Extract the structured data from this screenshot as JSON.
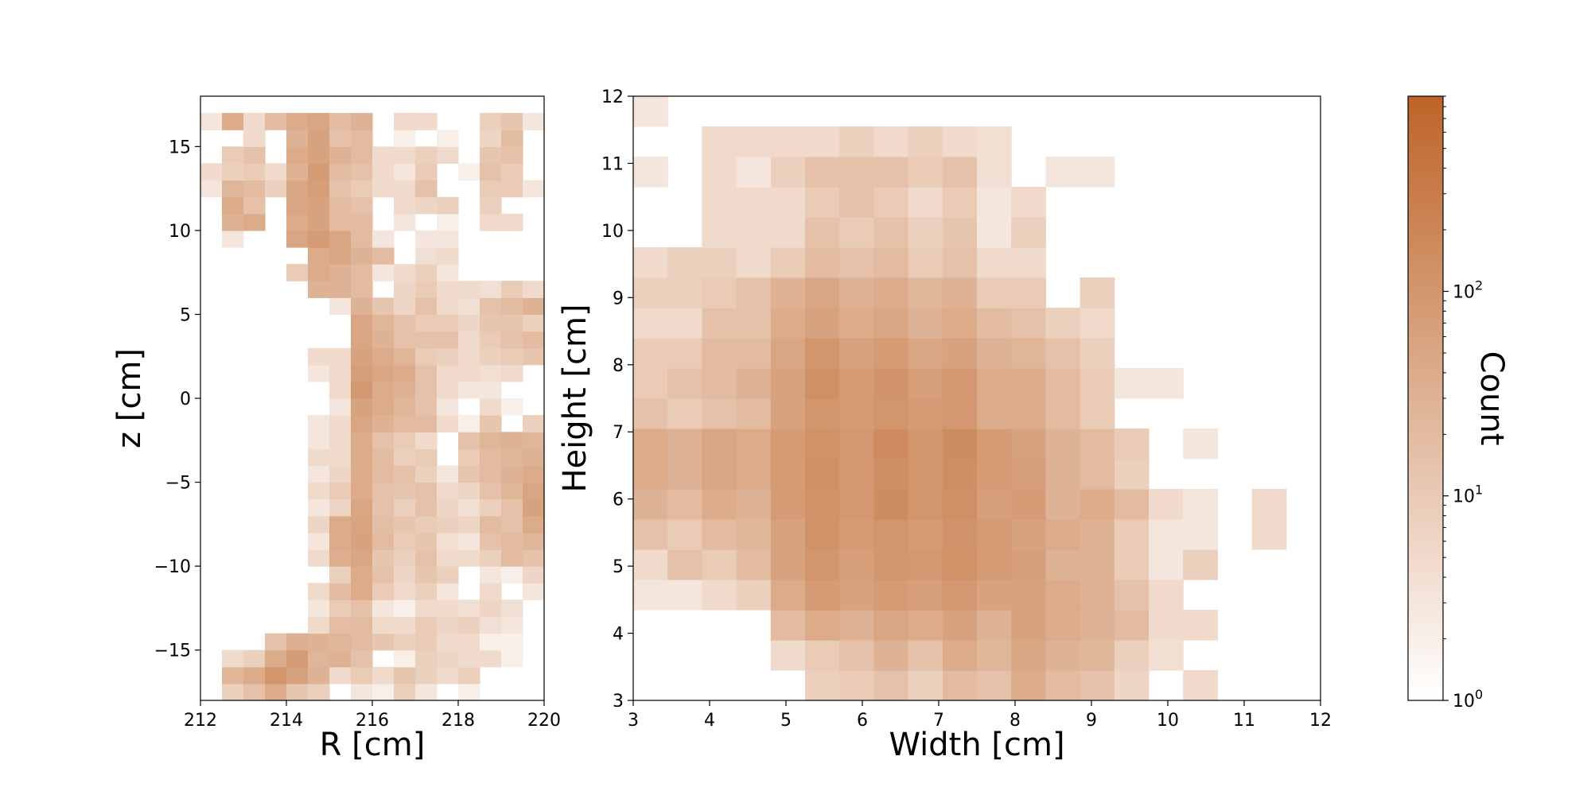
{
  "chart_data": [
    {
      "type": "heatmap",
      "title": "",
      "xlabel": "R [cm]",
      "ylabel": "z [cm]",
      "xlim": [
        212,
        220
      ],
      "ylim": [
        -18,
        18
      ],
      "xticks": [
        212,
        214,
        216,
        218,
        220
      ],
      "xtick_labels": [
        "212",
        "214",
        "216",
        "218",
        "220"
      ],
      "yticks": [
        -15,
        -10,
        -5,
        0,
        5,
        10,
        15
      ],
      "ytick_labels": [
        "−15",
        "−10",
        "−5",
        "0",
        "5",
        "10",
        "15"
      ],
      "color_scale": "log",
      "x_edges": [
        212,
        212.5,
        213,
        213.5,
        214,
        214.5,
        215,
        215.5,
        216,
        216.5,
        217,
        217.5,
        218,
        218.5,
        219,
        219.5,
        220
      ],
      "y_edges": [
        -18,
        -17,
        -16,
        -15,
        -14,
        -13,
        -12,
        -11,
        -10,
        -9,
        -8,
        -7,
        -6,
        -5,
        -4,
        -3,
        -2,
        -1,
        0,
        1,
        2,
        3,
        4,
        5,
        6,
        7,
        8,
        9,
        10,
        11,
        12,
        13,
        14,
        15,
        16,
        17,
        18
      ],
      "counts": [
        [
          0,
          8,
          15,
          40,
          12,
          8,
          0,
          3,
          2,
          8,
          3,
          0,
          2,
          0,
          0,
          0
        ],
        [
          0,
          25,
          40,
          100,
          60,
          30,
          5,
          10,
          5,
          12,
          8,
          5,
          8,
          0,
          0,
          0
        ],
        [
          0,
          5,
          8,
          40,
          80,
          25,
          30,
          15,
          0,
          2,
          8,
          6,
          5,
          5,
          2,
          0
        ],
        [
          0,
          0,
          0,
          15,
          35,
          30,
          25,
          20,
          12,
          8,
          10,
          5,
          5,
          2,
          2,
          0
        ],
        [
          0,
          0,
          0,
          0,
          0,
          5,
          18,
          20,
          5,
          5,
          10,
          6,
          8,
          4,
          3,
          0
        ],
        [
          0,
          0,
          0,
          0,
          0,
          3,
          10,
          15,
          3,
          2,
          5,
          5,
          4,
          6,
          4,
          0
        ],
        [
          0,
          0,
          0,
          0,
          0,
          5,
          20,
          40,
          10,
          5,
          8,
          3,
          0,
          5,
          0,
          3
        ],
        [
          0,
          0,
          0,
          0,
          0,
          0,
          8,
          40,
          15,
          6,
          12,
          8,
          0,
          3,
          2,
          6
        ],
        [
          0,
          0,
          0,
          0,
          0,
          5,
          35,
          50,
          12,
          8,
          15,
          5,
          5,
          8,
          20,
          15
        ],
        [
          0,
          0,
          0,
          0,
          0,
          3,
          40,
          60,
          20,
          10,
          12,
          4,
          3,
          15,
          20,
          25
        ],
        [
          0,
          0,
          0,
          0,
          0,
          6,
          40,
          55,
          18,
          12,
          10,
          8,
          6,
          20,
          15,
          40
        ],
        [
          0,
          0,
          0,
          0,
          0,
          3,
          6,
          50,
          15,
          8,
          15,
          6,
          4,
          8,
          15,
          60
        ],
        [
          0,
          0,
          0,
          0,
          0,
          5,
          10,
          40,
          15,
          12,
          15,
          5,
          6,
          15,
          25,
          50
        ],
        [
          0,
          0,
          0,
          0,
          0,
          3,
          6,
          40,
          20,
          15,
          8,
          3,
          12,
          20,
          30,
          40
        ],
        [
          0,
          0,
          0,
          0,
          0,
          5,
          5,
          40,
          20,
          8,
          10,
          0,
          10,
          20,
          25,
          30
        ],
        [
          0,
          0,
          0,
          0,
          0,
          3,
          5,
          40,
          15,
          10,
          5,
          0,
          15,
          25,
          30,
          25
        ],
        [
          0,
          0,
          0,
          0,
          0,
          3,
          5,
          50,
          30,
          20,
          20,
          5,
          2,
          12,
          0,
          8
        ],
        [
          0,
          0,
          0,
          0,
          0,
          0,
          3,
          60,
          40,
          25,
          15,
          3,
          0,
          5,
          2,
          0
        ],
        [
          0,
          0,
          0,
          0,
          0,
          0,
          5,
          90,
          40,
          30,
          15,
          5,
          3,
          3,
          0,
          0
        ],
        [
          0,
          0,
          0,
          0,
          0,
          3,
          5,
          70,
          50,
          40,
          15,
          5,
          5,
          4,
          5,
          0
        ],
        [
          0,
          0,
          0,
          0,
          0,
          5,
          5,
          60,
          40,
          25,
          10,
          8,
          5,
          8,
          10,
          12
        ],
        [
          0,
          0,
          0,
          0,
          0,
          0,
          0,
          50,
          30,
          15,
          15,
          15,
          5,
          10,
          15,
          20
        ],
        [
          0,
          0,
          0,
          0,
          0,
          0,
          0,
          50,
          25,
          15,
          10,
          10,
          6,
          12,
          12,
          8
        ],
        [
          0,
          0,
          0,
          0,
          0,
          0,
          3,
          30,
          12,
          6,
          15,
          5,
          4,
          15,
          20,
          30
        ],
        [
          0,
          0,
          0,
          0,
          0,
          30,
          30,
          20,
          0,
          6,
          10,
          5,
          5,
          4,
          10,
          5
        ],
        [
          0,
          0,
          0,
          0,
          10,
          40,
          30,
          20,
          3,
          5,
          8,
          3,
          0,
          0,
          0,
          0
        ],
        [
          0,
          0,
          0,
          0,
          0,
          40,
          50,
          30,
          20,
          0,
          4,
          5,
          0,
          0,
          0,
          0
        ],
        [
          0,
          3,
          0,
          0,
          50,
          80,
          50,
          20,
          3,
          0,
          3,
          3,
          0,
          0,
          0,
          0
        ],
        [
          0,
          30,
          40,
          0,
          40,
          60,
          20,
          20,
          0,
          3,
          0,
          2,
          0,
          5,
          5,
          0
        ],
        [
          0,
          40,
          15,
          0,
          50,
          60,
          20,
          15,
          0,
          5,
          6,
          8,
          0,
          8,
          0,
          0
        ],
        [
          3,
          25,
          20,
          8,
          50,
          70,
          15,
          10,
          5,
          5,
          15,
          0,
          0,
          10,
          10,
          3
        ],
        [
          5,
          8,
          10,
          5,
          30,
          80,
          20,
          15,
          5,
          3,
          10,
          0,
          2,
          15,
          10,
          0
        ],
        [
          0,
          10,
          15,
          0,
          40,
          60,
          30,
          20,
          5,
          5,
          8,
          5,
          0,
          12,
          15,
          0
        ],
        [
          0,
          0,
          5,
          0,
          30,
          60,
          15,
          20,
          0,
          2,
          0,
          2,
          0,
          6,
          20,
          0
        ],
        [
          3,
          40,
          5,
          20,
          40,
          50,
          20,
          30,
          0,
          5,
          5,
          0,
          0,
          8,
          12,
          3
        ],
        [
          0,
          0,
          0,
          0,
          0,
          0,
          0,
          0,
          0,
          0,
          0,
          0,
          0,
          0,
          0,
          0
        ]
      ]
    },
    {
      "type": "heatmap",
      "title": "",
      "xlabel": "Width [cm]",
      "ylabel": "Height [cm]",
      "xlim": [
        3,
        12
      ],
      "ylim": [
        3,
        12
      ],
      "xticks": [
        3,
        4,
        5,
        6,
        7,
        8,
        9,
        10,
        11,
        12
      ],
      "xtick_labels": [
        "3",
        "4",
        "5",
        "6",
        "7",
        "8",
        "9",
        "10",
        "11",
        "12"
      ],
      "yticks": [
        3,
        4,
        5,
        6,
        7,
        8,
        9,
        10,
        11,
        12
      ],
      "ytick_labels": [
        "3",
        "4",
        "5",
        "6",
        "7",
        "8",
        "9",
        "10",
        "11",
        "12"
      ],
      "color_scale": "log",
      "x_edges": [
        3,
        3.45,
        3.9,
        4.35,
        4.8,
        5.25,
        5.7,
        6.15,
        6.6,
        7.05,
        7.5,
        7.95,
        8.4,
        8.85,
        9.3,
        9.75,
        10.2,
        10.65,
        11.1,
        11.55,
        12
      ],
      "y_edges": [
        3,
        3.45,
        3.9,
        4.35,
        4.8,
        5.25,
        5.7,
        6.15,
        6.6,
        7.05,
        7.5,
        7.95,
        8.4,
        8.85,
        9.3,
        9.75,
        10.2,
        10.65,
        11.1,
        11.55,
        12
      ],
      "counts": [
        [
          0,
          0,
          0,
          0,
          0,
          8,
          10,
          15,
          8,
          20,
          15,
          40,
          20,
          15,
          6,
          0,
          5,
          0,
          0,
          0
        ],
        [
          0,
          0,
          0,
          0,
          5,
          10,
          15,
          30,
          15,
          40,
          25,
          50,
          30,
          25,
          8,
          4,
          0,
          0,
          0,
          0
        ],
        [
          0,
          0,
          0,
          0,
          20,
          40,
          30,
          50,
          40,
          60,
          30,
          60,
          40,
          30,
          20,
          5,
          5,
          0,
          0,
          0
        ],
        [
          3,
          3,
          5,
          8,
          40,
          80,
          60,
          80,
          70,
          90,
          60,
          60,
          40,
          30,
          15,
          5,
          0,
          0,
          0,
          0
        ],
        [
          5,
          15,
          10,
          20,
          60,
          100,
          70,
          100,
          90,
          120,
          80,
          70,
          30,
          30,
          10,
          3,
          8,
          0,
          0,
          0
        ],
        [
          15,
          10,
          20,
          25,
          60,
          120,
          80,
          100,
          80,
          110,
          80,
          60,
          40,
          30,
          10,
          3,
          3,
          0,
          5,
          0
        ],
        [
          30,
          20,
          40,
          30,
          80,
          120,
          90,
          150,
          100,
          130,
          70,
          80,
          30,
          40,
          20,
          5,
          3,
          0,
          5,
          0
        ],
        [
          40,
          30,
          50,
          40,
          80,
          130,
          90,
          140,
          100,
          140,
          80,
          70,
          30,
          20,
          8,
          0,
          0,
          0,
          0,
          0
        ],
        [
          40,
          30,
          50,
          40,
          80,
          120,
          90,
          160,
          100,
          150,
          80,
          60,
          30,
          20,
          10,
          0,
          3,
          0,
          0,
          0
        ],
        [
          15,
          10,
          15,
          20,
          60,
          100,
          80,
          100,
          80,
          90,
          40,
          40,
          20,
          10,
          0,
          0,
          0,
          0,
          0,
          0
        ],
        [
          10,
          15,
          20,
          30,
          60,
          130,
          80,
          110,
          70,
          90,
          40,
          40,
          20,
          10,
          3,
          3,
          0,
          0,
          0,
          0
        ],
        [
          10,
          10,
          20,
          20,
          50,
          100,
          60,
          80,
          50,
          60,
          30,
          25,
          15,
          8,
          0,
          0,
          0,
          0,
          0,
          0
        ],
        [
          5,
          5,
          15,
          15,
          40,
          60,
          40,
          50,
          30,
          40,
          20,
          15,
          8,
          5,
          0,
          0,
          0,
          0,
          0,
          0
        ],
        [
          8,
          8,
          10,
          15,
          30,
          50,
          30,
          40,
          25,
          30,
          10,
          10,
          0,
          8,
          0,
          0,
          0,
          0,
          0,
          0
        ],
        [
          5,
          8,
          8,
          5,
          10,
          20,
          15,
          20,
          10,
          15,
          5,
          5,
          0,
          0,
          0,
          0,
          0,
          0,
          0,
          0
        ],
        [
          0,
          0,
          5,
          5,
          5,
          15,
          10,
          15,
          8,
          12,
          3,
          8,
          0,
          0,
          0,
          0,
          0,
          0,
          0,
          0
        ],
        [
          0,
          0,
          5,
          5,
          5,
          10,
          15,
          10,
          5,
          10,
          3,
          5,
          0,
          0,
          0,
          0,
          0,
          0,
          0,
          0
        ],
        [
          3,
          0,
          5,
          3,
          8,
          15,
          15,
          15,
          10,
          15,
          4,
          0,
          3,
          3,
          0,
          0,
          0,
          0,
          0,
          0
        ],
        [
          0,
          0,
          5,
          5,
          5,
          5,
          8,
          5,
          8,
          5,
          4,
          0,
          0,
          0,
          0,
          0,
          0,
          0,
          0,
          0
        ],
        [
          3,
          0,
          0,
          0,
          0,
          0,
          0,
          0,
          0,
          0,
          0,
          0,
          0,
          0,
          0,
          0,
          0,
          0,
          0,
          0
        ]
      ]
    }
  ],
  "colorbar": {
    "label": "Count",
    "scale": "log",
    "range": [
      1,
      900
    ],
    "ticks": [
      1,
      10,
      100
    ],
    "tick_base": "10",
    "tick_exponents": [
      "0",
      "1",
      "2"
    ],
    "color_low": "#ffffff",
    "color_high": "#bd6428"
  }
}
